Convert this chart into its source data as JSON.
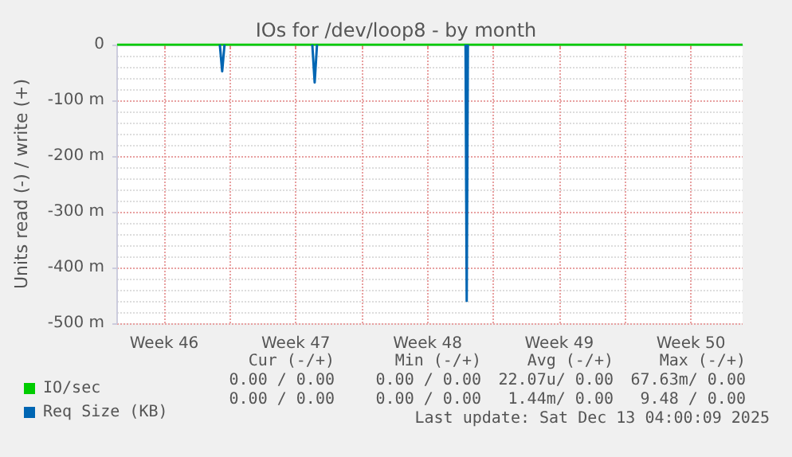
{
  "chart_data": {
    "type": "line",
    "title": "IOs for /dev/loop8 - by month",
    "ylabel": "Units read (-) / write (+)",
    "xlim": [
      "2025-11-11T00:00",
      "2025-12-14T06:00"
    ],
    "xticks": [
      {
        "value": "2025-11-13T12:00",
        "label": "Week 46"
      },
      {
        "value": "2025-11-17T00:00",
        "label": null
      },
      {
        "value": "2025-11-20T12:00",
        "label": "Week 47"
      },
      {
        "value": "2025-11-24T00:00",
        "label": null
      },
      {
        "value": "2025-11-27T12:00",
        "label": "Week 48"
      },
      {
        "value": "2025-12-01T00:00",
        "label": null
      },
      {
        "value": "2025-12-04T12:00",
        "label": "Week 49"
      },
      {
        "value": "2025-12-08T00:00",
        "label": null
      },
      {
        "value": "2025-12-11T12:00",
        "label": "Week 50"
      }
    ],
    "ylim": [
      -500,
      0
    ],
    "yticks": [
      {
        "value": -500,
        "label": "-500 m"
      },
      {
        "value": -400,
        "label": "-400 m"
      },
      {
        "value": -300,
        "label": "-300 m"
      },
      {
        "value": -200,
        "label": "-200 m"
      },
      {
        "value": -100,
        "label": "-100 m"
      },
      0
    ],
    "series": [
      {
        "name": "IO/sec",
        "color": "#00cc00",
        "x": [
          "2025-11-11T00:00",
          "2025-12-14T06:00"
        ],
        "values": [
          0,
          0
        ]
      },
      {
        "name": "Req Size (KB)",
        "color": "#0066b3",
        "x": [
          "2025-11-16T11:00",
          "2025-11-16T14:00",
          "2025-11-16T17:00",
          "2025-11-18T00:00",
          "2025-11-21T09:00",
          "2025-11-21T12:00",
          "2025-11-21T15:00",
          "2025-11-25T00:00",
          "2025-11-29T12:30",
          "2025-11-29T14:00",
          "2025-11-29T15:30"
        ],
        "values": [
          0,
          -48,
          0,
          null,
          0,
          -68,
          0,
          null,
          0,
          -460,
          0
        ]
      }
    ],
    "grid": true,
    "legend": "bottom left",
    "marker": "none",
    "line_style": "solid",
    "annotations": [
      "Cur (-/+)",
      "Min (-/+)",
      "Avg (-/+)",
      "Max (-/+)",
      "0.00 / 0.00",
      "0.00 / 0.00",
      "22.07u/ 0.00",
      "67.63m/ 0.00",
      "0.00 / 0.00",
      "0.00 / 0.00",
      "1.44m/ 0.00",
      "9.48 / 0.00",
      "Last update: Sat Dec 13 04:00:09 2025"
    ]
  }
}
